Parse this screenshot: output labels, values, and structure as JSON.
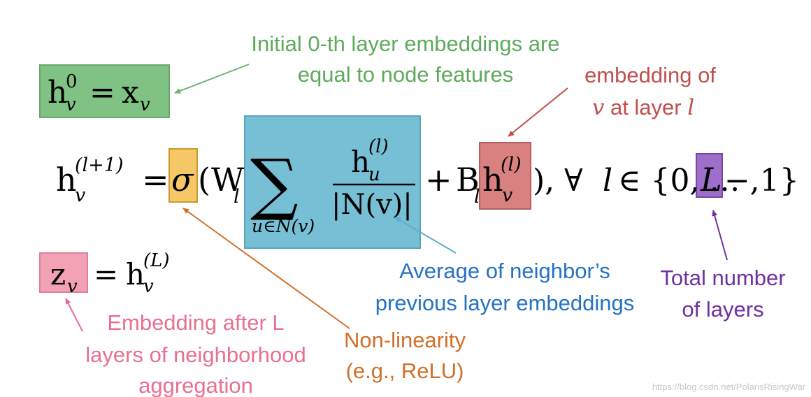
{
  "formulas": {
    "init": {
      "h": "h",
      "sup": "0",
      "sub": "v",
      "eq": "=",
      "x": "x",
      "xsub": "v"
    },
    "main": {
      "h": "h",
      "sup": "(l+1)",
      "sub": "v",
      "eq": "=",
      "sigma": "σ",
      "open_paren": "(",
      "W": "W",
      "Wsub": "l",
      "sum": "∑",
      "sum_under": "u∈N(v)",
      "num_h": "h",
      "num_sup": "(l)",
      "num_sub": "u",
      "den": "|N(v)|",
      "plus": "+",
      "B": "B",
      "Bsub": "l",
      "hb": "h",
      "hb_sup": "(l)",
      "hb_sub": "v",
      "close": "), ∀",
      "l": "l",
      "in_set": "∈ {0, … ,",
      "L": "L",
      "tail": "− 1}"
    },
    "final": {
      "z": "z",
      "zsub": "v",
      "eq": "=",
      "h": "h",
      "sup": "(L)",
      "sub": "v"
    }
  },
  "annotations": {
    "init_note": {
      "line1": "Initial 0-th layer embeddings are",
      "line2": "equal to node features"
    },
    "embedding_note": {
      "line1": "embedding of",
      "v": "v",
      "at_layer": " at layer ",
      "l": "l"
    },
    "avg_note": {
      "line1": "Average of neighbor’s",
      "line2": "previous layer embeddings"
    },
    "layers_note": {
      "line1": "Total number",
      "line2": "of layers"
    },
    "final_note": {
      "line1": "Embedding after L",
      "line2": "layers of neighborhood",
      "line3": "aggregation"
    },
    "nonlin_note": {
      "line1": "Non-linearity",
      "line2": "(e.g., ReLU)"
    }
  },
  "watermark": "https://blog.csdn.net/PolarisRisingWar",
  "colors": {
    "green": "#7fc184",
    "green_text": "#5eaa5b",
    "red": "#d87c7c",
    "red_text": "#c0504d",
    "blue": "#74bcd3",
    "blue_text": "#2472c1",
    "purple": "#9d6dcb",
    "purple_text": "#7030a0",
    "pink": "#f3a2b5",
    "pink_text": "#e8708e",
    "orange": "#f6c766",
    "orange_text": "#d0702b"
  }
}
